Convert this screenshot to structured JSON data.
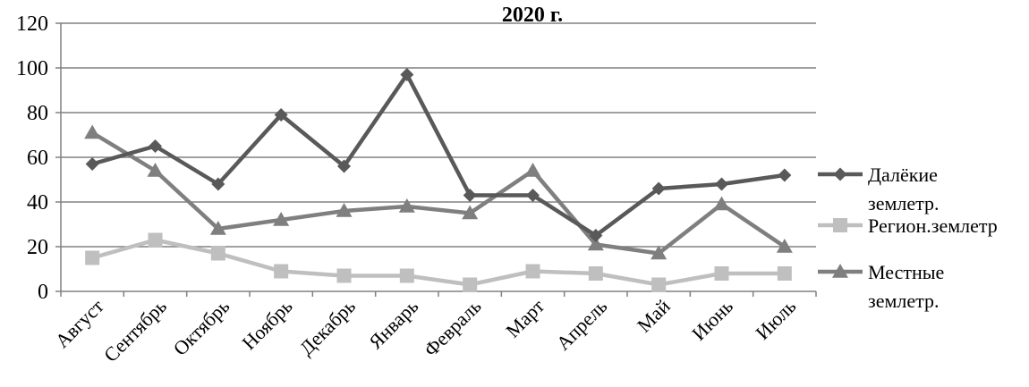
{
  "chart_data": {
    "type": "line",
    "title": "2020 г.",
    "xlabel": "",
    "ylabel": "",
    "ylim": [
      0,
      120
    ],
    "yticks": [
      0,
      20,
      40,
      60,
      80,
      100,
      120
    ],
    "grid": "horizontal",
    "legend_position": "right",
    "categories": [
      "Август",
      "Сентябрь",
      "Октябрь",
      "Ноябрь",
      "Декабрь",
      "Январь",
      "Февраль",
      "Март",
      "Апрель",
      "Май",
      "Июнь",
      "Июль"
    ],
    "series": [
      {
        "name": "Далёкие землетр.",
        "name_lines": [
          "Далёкие",
          "землетр."
        ],
        "marker": "diamond",
        "color": "#595959",
        "values": [
          57,
          65,
          48,
          79,
          56,
          97,
          43,
          43,
          25,
          46,
          48,
          52
        ]
      },
      {
        "name": "Регион.землетр",
        "name_lines": [
          "Регион.землетр"
        ],
        "marker": "square",
        "color": "#bfbfbf",
        "values": [
          15,
          23,
          17,
          9,
          7,
          7,
          3,
          9,
          8,
          3,
          8,
          8
        ]
      },
      {
        "name": "Местные землетр.",
        "name_lines": [
          "Местные",
          "землетр."
        ],
        "marker": "triangle",
        "color": "#7f7f7f",
        "values": [
          71,
          54,
          28,
          32,
          36,
          38,
          35,
          54,
          21,
          17,
          39,
          20
        ]
      }
    ]
  }
}
